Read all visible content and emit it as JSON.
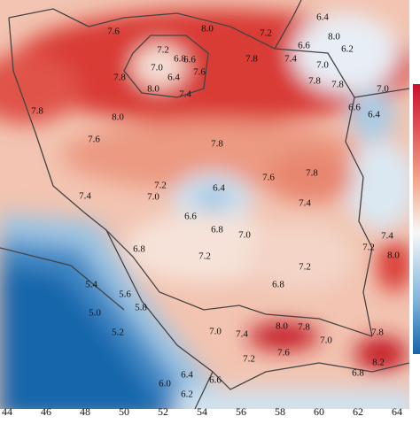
{
  "map": {
    "contour_labels": [
      "7.6",
      "8.0",
      "7.2",
      "6.4",
      "6.6",
      "8.0",
      "6.2",
      "7.2",
      "6.8",
      "6.6",
      "7.0",
      "6.4",
      "7.6",
      "7.8",
      "7.4",
      "7.0",
      "7.8",
      "7.8",
      "8.0",
      "7.4",
      "7.8",
      "7.0",
      "6.6",
      "6.4",
      "7.8",
      "8.0",
      "7.6",
      "7.8",
      "7.8",
      "7.6",
      "7.2",
      "7.0",
      "6.4",
      "7.4",
      "7.4",
      "6.6",
      "6.8",
      "7.0",
      "6.8",
      "7.2",
      "7.2",
      "7.2",
      "7.4",
      "8.0",
      "6.8",
      "5.4",
      "5.6",
      "5.8",
      "5.0",
      "5.2",
      "7.0",
      "7.4",
      "8.0",
      "7.8",
      "7.0",
      "7.6",
      "7.8",
      "7.2",
      "8.2",
      "6.0",
      "6.4",
      "6.6",
      "6.2",
      "6.8"
    ],
    "x_axis_labels": [
      44,
      46,
      48,
      50,
      52,
      54,
      56,
      58,
      60,
      62,
      64
    ]
  }
}
